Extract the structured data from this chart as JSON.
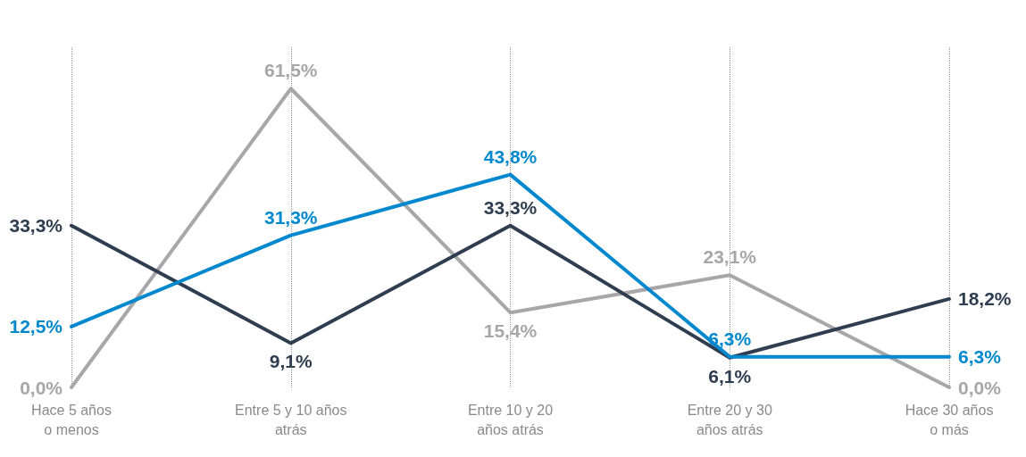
{
  "chart_data": {
    "type": "line",
    "categories": [
      "Hace 5 años\no menos",
      "Entre 5 y 10 años\natrás",
      "Entre 10 y 20\naños atrás",
      "Entre 20 y 30\naños atrás",
      "Hace 30 años\no más"
    ],
    "series": [
      {
        "color": "#a7a7a9",
        "values": [
          0.0,
          61.5,
          15.4,
          23.1,
          0.0
        ],
        "value_labels": [
          "0,0%",
          "61,5%",
          "15,4%",
          "23,1%",
          "0,0%"
        ]
      },
      {
        "color": "#2e3d4f",
        "values": [
          33.3,
          9.1,
          33.3,
          6.1,
          18.2
        ],
        "value_labels": [
          "33,3%",
          "9,1%",
          "33,3%",
          "6,1%",
          "18,2%"
        ]
      },
      {
        "color": "#0088cf",
        "values": [
          12.5,
          31.3,
          43.8,
          6.3,
          6.3
        ],
        "value_labels": [
          "12,5%",
          "31,3%",
          "43,8%",
          "6,3%",
          "6,3%"
        ]
      }
    ],
    "grid": "x",
    "marker": "none",
    "line_style": "solid"
  }
}
